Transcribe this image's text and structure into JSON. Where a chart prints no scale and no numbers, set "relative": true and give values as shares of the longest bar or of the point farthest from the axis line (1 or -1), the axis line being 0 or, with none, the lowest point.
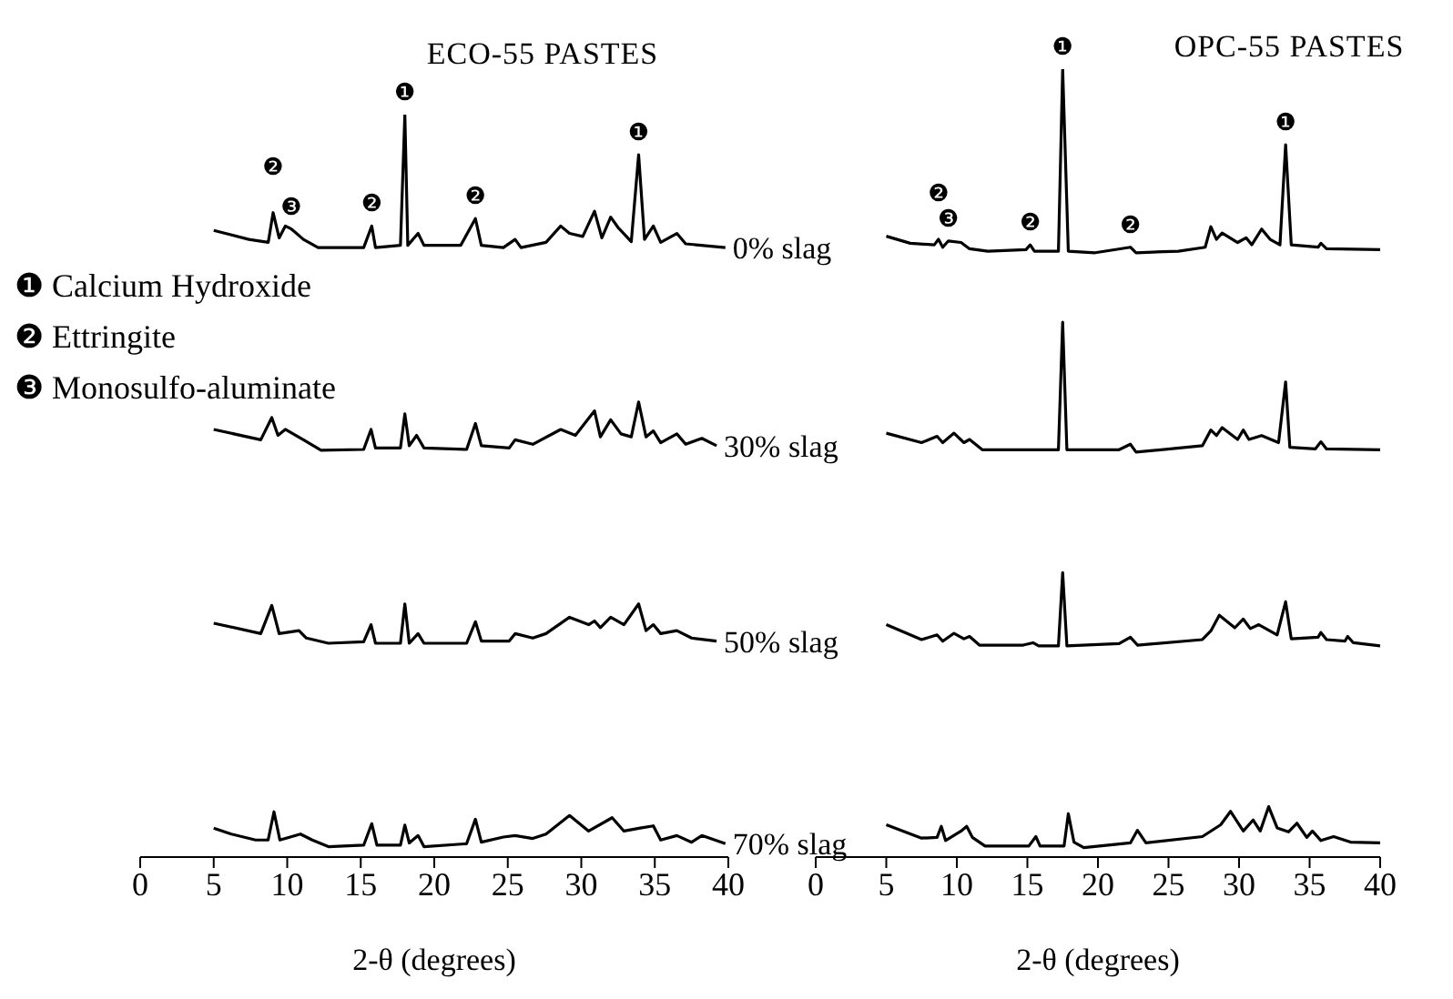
{
  "chart_data": [
    {
      "type": "line",
      "title": "ECO-55 PASTES",
      "xlabel": "2-θ (degrees)",
      "relative": true,
      "xlim": [
        0,
        40
      ],
      "xticks": [
        0,
        5,
        10,
        15,
        20,
        25,
        30,
        35,
        40
      ],
      "annotations": [
        "❶ Calcium Hydroxide",
        "❷ Ettringite",
        "❸ Monosulfo-aluminate",
        {
          "text": "❷",
          "x": 9.04,
          "y": 0.868
        },
        {
          "text": "❸",
          "x": 10.28,
          "y": 0.846
        },
        {
          "text": "❷",
          "x": 15.75,
          "y": 0.85
        },
        {
          "text": "❶",
          "x": 18,
          "y": 1
        },
        {
          "text": "❷",
          "x": 22.8,
          "y": 0.86
        },
        {
          "text": "❶",
          "x": 33.9,
          "y": 0.946
        }
      ],
      "series": [
        {
          "name": "0% slag",
          "color": "#000000",
          "x": [
            5,
            7.39,
            8.71,
            9.04,
            9.45,
            9.87,
            10.28,
            11.1,
            12.1,
            15.2,
            15.75,
            16,
            17.7,
            18,
            18.2,
            18.9,
            19.3,
            21.8,
            22.8,
            23.2,
            24.7,
            25.5,
            25.9,
            27.6,
            28.6,
            29.2,
            30.1,
            30.9,
            31.4,
            32,
            32.5,
            33.4,
            33.9,
            34.3,
            34.9,
            35.4,
            36.5,
            37.1,
            39.8
          ],
          "values": [
            0.844,
            0.832,
            0.828,
            0.868,
            0.834,
            0.85,
            0.846,
            0.832,
            0.821,
            0.821,
            0.85,
            0.821,
            0.824,
            1,
            0.824,
            0.84,
            0.824,
            0.824,
            0.86,
            0.824,
            0.821,
            0.832,
            0.821,
            0.828,
            0.85,
            0.84,
            0.836,
            0.87,
            0.834,
            0.862,
            0.848,
            0.829,
            0.946,
            0.832,
            0.85,
            0.828,
            0.84,
            0.826,
            0.821
          ]
        },
        {
          "name": "30% slag",
          "color": "#000000",
          "x": [
            5,
            8.2,
            8.95,
            9.37,
            9.87,
            11.1,
            12.3,
            15.2,
            15.7,
            16,
            17.7,
            18,
            18.3,
            18.8,
            19.3,
            22.2,
            22.8,
            23.2,
            25.1,
            25.5,
            26.7,
            28.6,
            29.6,
            30.9,
            31.3,
            32,
            32.7,
            33.4,
            33.9,
            34.4,
            34.9,
            35.4,
            36.5,
            37.1,
            38.2,
            39.2
          ],
          "values": [
            0.576,
            0.562,
            0.592,
            0.568,
            0.576,
            0.562,
            0.548,
            0.549,
            0.576,
            0.551,
            0.551,
            0.597,
            0.554,
            0.568,
            0.551,
            0.549,
            0.584,
            0.554,
            0.551,
            0.562,
            0.556,
            0.576,
            0.568,
            0.601,
            0.566,
            0.589,
            0.57,
            0.566,
            0.613,
            0.566,
            0.574,
            0.558,
            0.57,
            0.556,
            0.564,
            0.554
          ]
        },
        {
          "name": "50% slag",
          "color": "#000000",
          "x": [
            5,
            8.2,
            8.95,
            9.45,
            10.8,
            11.3,
            12.8,
            15.2,
            15.7,
            16,
            17.7,
            18,
            18.3,
            18.9,
            19.3,
            22.2,
            22.8,
            23.2,
            25.1,
            25.5,
            26.7,
            27.6,
            29.2,
            30.5,
            30.9,
            31.3,
            32,
            32.9,
            33.9,
            34.4,
            34.9,
            35.4,
            36.5,
            37.5,
            39.2
          ],
          "values": [
            0.315,
            0.301,
            0.339,
            0.301,
            0.305,
            0.295,
            0.288,
            0.29,
            0.313,
            0.288,
            0.288,
            0.341,
            0.288,
            0.301,
            0.288,
            0.288,
            0.317,
            0.291,
            0.291,
            0.301,
            0.295,
            0.301,
            0.323,
            0.313,
            0.318,
            0.309,
            0.323,
            0.313,
            0.341,
            0.305,
            0.313,
            0.301,
            0.305,
            0.295,
            0.291
          ]
        },
        {
          "name": "70% slag",
          "color": "#000000",
          "x": [
            5,
            6.2,
            7.85,
            8.7,
            9.1,
            9.5,
            10.9,
            11.7,
            12.8,
            15.2,
            15.75,
            16.1,
            17.7,
            18,
            18.3,
            18.9,
            19.3,
            22.2,
            22.8,
            23.2,
            24.7,
            25.5,
            26.7,
            27.6,
            29.2,
            30.5,
            32.1,
            32.9,
            34,
            34.9,
            35.4,
            36.5,
            37.5,
            38.2,
            39.8
          ],
          "values": [
            0.039,
            0.031,
            0.023,
            0.023,
            0.061,
            0.023,
            0.031,
            0.023,
            0.014,
            0.016,
            0.045,
            0.016,
            0.016,
            0.043,
            0.019,
            0.029,
            0.014,
            0.018,
            0.051,
            0.02,
            0.027,
            0.029,
            0.025,
            0.031,
            0.056,
            0.035,
            0.053,
            0.035,
            0.039,
            0.042,
            0.023,
            0.029,
            0.02,
            0.029,
            0.018
          ]
        }
      ]
    },
    {
      "type": "line",
      "title": "OPC-55 PASTES",
      "xlabel": "2-θ (degrees)",
      "relative": true,
      "xlim": [
        0,
        40
      ],
      "xticks": [
        0,
        5,
        10,
        15,
        20,
        25,
        30,
        35,
        40
      ],
      "annotations": [
        {
          "text": "❷",
          "x": 8.7,
          "y": 0.784
        },
        {
          "text": "❸",
          "x": 9.4,
          "y": 0.782
        },
        {
          "text": "❷",
          "x": 15.2,
          "y": 0.777
        },
        {
          "text": "❶",
          "x": 17.5,
          "y": 1
        },
        {
          "text": "❷",
          "x": 22.3,
          "y": 0.774
        },
        {
          "text": "❶",
          "x": 33.3,
          "y": 0.904
        }
      ],
      "series": [
        {
          "color": "#000000",
          "x": [
            5,
            6.7,
            8.4,
            8.7,
            9,
            9.4,
            10.3,
            10.9,
            12.2,
            14.9,
            15.2,
            15.5,
            17.2,
            17.5,
            17.9,
            19.8,
            22.3,
            22.7,
            25.7,
            27.6,
            28,
            28.4,
            28.8,
            29.9,
            30.5,
            30.9,
            31.6,
            32.2,
            32.9,
            33.3,
            33.7,
            35.6,
            35.8,
            36.2,
            40
          ],
          "values": [
            0.788,
            0.779,
            0.777,
            0.784,
            0.774,
            0.782,
            0.78,
            0.772,
            0.769,
            0.771,
            0.777,
            0.769,
            0.769,
            1,
            0.769,
            0.767,
            0.774,
            0.767,
            0.769,
            0.774,
            0.8,
            0.784,
            0.792,
            0.78,
            0.786,
            0.777,
            0.797,
            0.784,
            0.777,
            0.904,
            0.777,
            0.774,
            0.779,
            0.772,
            0.771
          ]
        },
        {
          "color": "#000000",
          "x": [
            5,
            7.5,
            8.6,
            9,
            9.8,
            10.5,
            10.9,
            11.8,
            14.7,
            17.2,
            17.5,
            17.8,
            21.5,
            22.3,
            22.7,
            27.4,
            28,
            28.4,
            28.8,
            29.9,
            30.3,
            30.7,
            31.6,
            32.8,
            33.3,
            33.6,
            35.4,
            35.8,
            36.2,
            40
          ],
          "values": [
            0.538,
            0.526,
            0.534,
            0.526,
            0.538,
            0.526,
            0.53,
            0.517,
            0.517,
            0.517,
            0.679,
            0.517,
            0.517,
            0.524,
            0.514,
            0.522,
            0.542,
            0.535,
            0.545,
            0.53,
            0.542,
            0.53,
            0.535,
            0.526,
            0.603,
            0.52,
            0.518,
            0.527,
            0.518,
            0.517
          ]
        },
        {
          "color": "#000000",
          "x": [
            5,
            7.5,
            8.6,
            9,
            9.8,
            10.5,
            10.9,
            11.6,
            14.7,
            15.4,
            15.8,
            17.2,
            17.5,
            17.8,
            21.5,
            22.3,
            22.8,
            27.4,
            28,
            28.6,
            29.7,
            30.3,
            30.8,
            31.4,
            32.7,
            33.3,
            33.7,
            35.6,
            35.8,
            36.2,
            37.5,
            37.7,
            38.1,
            40
          ],
          "values": [
            0.295,
            0.276,
            0.282,
            0.274,
            0.284,
            0.277,
            0.28,
            0.269,
            0.269,
            0.272,
            0.268,
            0.268,
            0.361,
            0.268,
            0.271,
            0.279,
            0.269,
            0.276,
            0.287,
            0.307,
            0.291,
            0.302,
            0.29,
            0.295,
            0.282,
            0.324,
            0.277,
            0.279,
            0.285,
            0.276,
            0.274,
            0.28,
            0.272,
            0.268
          ]
        },
        {
          "color": "#000000",
          "x": [
            5,
            7.5,
            8.6,
            8.9,
            9.2,
            10.3,
            10.7,
            11.1,
            12,
            15.1,
            15.6,
            15.9,
            17.6,
            17.9,
            18.3,
            19,
            22.3,
            22.8,
            23.4,
            27.4,
            28.7,
            29.4,
            30.3,
            31,
            31.5,
            32.1,
            32.7,
            33.5,
            34.1,
            34.8,
            35.2,
            35.8,
            36.7,
            37.9,
            40
          ],
          "values": [
            0.041,
            0.024,
            0.025,
            0.039,
            0.021,
            0.033,
            0.039,
            0.025,
            0.014,
            0.014,
            0.026,
            0.014,
            0.014,
            0.055,
            0.019,
            0.012,
            0.018,
            0.034,
            0.018,
            0.026,
            0.041,
            0.058,
            0.033,
            0.047,
            0.033,
            0.064,
            0.037,
            0.032,
            0.043,
            0.025,
            0.033,
            0.021,
            0.026,
            0.019,
            0.018
          ]
        }
      ]
    }
  ]
}
